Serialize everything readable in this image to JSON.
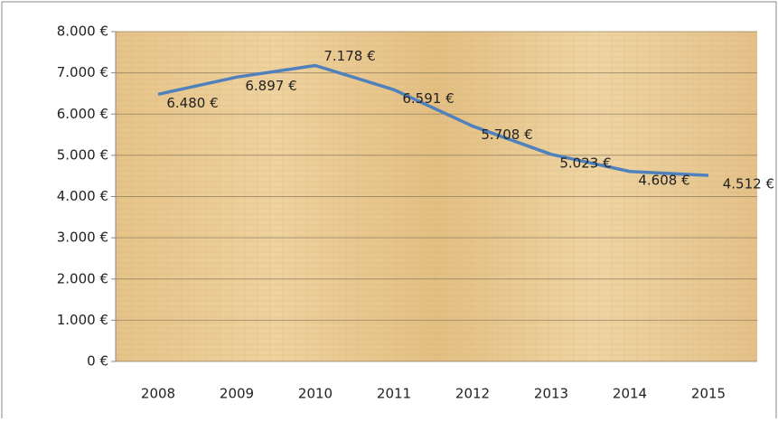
{
  "chart_data": {
    "type": "line",
    "categories": [
      "2008",
      "2009",
      "2010",
      "2011",
      "2012",
      "2013",
      "2014",
      "2015"
    ],
    "values": [
      6480,
      6897,
      7178,
      6591,
      5708,
      5023,
      4608,
      4512
    ],
    "value_labels": [
      "6.480 €",
      "6.897 €",
      "7.178 €",
      "6.591 €",
      "5.708 €",
      "5.023 €",
      "4.608 €",
      "4.512 €"
    ],
    "color": "#4f81bd",
    "ylim": [
      0,
      8000
    ],
    "yticks": [
      {
        "value": 0,
        "label": "0 €"
      },
      {
        "value": 1000,
        "label": "1.000 €"
      },
      {
        "value": 2000,
        "label": "2.000 €"
      },
      {
        "value": 3000,
        "label": "3.000 €"
      },
      {
        "value": 4000,
        "label": "4.000 €"
      },
      {
        "value": 5000,
        "label": "5.000 €"
      },
      {
        "value": 6000,
        "label": "6.000 €"
      },
      {
        "value": 7000,
        "label": "7.000 €"
      },
      {
        "value": 8000,
        "label": "8.000 €"
      }
    ],
    "grid": true
  }
}
